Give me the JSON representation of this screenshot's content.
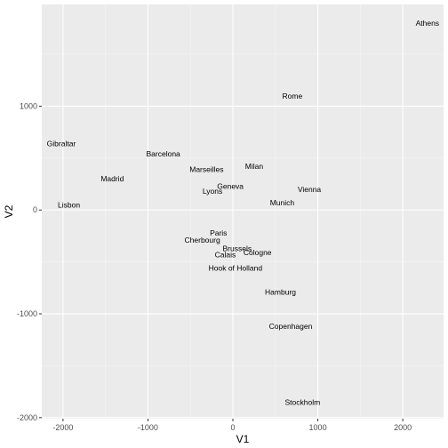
{
  "chart_data": {
    "type": "scatter",
    "xlabel": "V1",
    "ylabel": "V2",
    "xlim": [
      -2250,
      2480
    ],
    "ylim": [
      -2010,
      1980
    ],
    "xticks": [
      -2000,
      -1000,
      0,
      1000,
      2000
    ],
    "yticks": [
      -2000,
      -1000,
      0,
      1000
    ],
    "xtick_labels": [
      "-2000",
      "-1000",
      "0",
      "1000",
      "2000"
    ],
    "ytick_labels": [
      "-2000",
      "-1000",
      "0",
      "1000"
    ],
    "grid": true,
    "points": [
      {
        "label": "Athens",
        "x": 2290,
        "y": 1800
      },
      {
        "label": "Rome",
        "x": 700,
        "y": 1100
      },
      {
        "label": "Gibraltar",
        "x": -2020,
        "y": 640
      },
      {
        "label": "Barcelona",
        "x": -820,
        "y": 540
      },
      {
        "label": "Marseilles",
        "x": -310,
        "y": 390
      },
      {
        "label": "Milan",
        "x": 250,
        "y": 420
      },
      {
        "label": "Madrid",
        "x": -1420,
        "y": 300
      },
      {
        "label": "Geneva",
        "x": -30,
        "y": 230
      },
      {
        "label": "Lyons",
        "x": -240,
        "y": 180
      },
      {
        "label": "Vienna",
        "x": 900,
        "y": 200
      },
      {
        "label": "Lisbon",
        "x": -1930,
        "y": 50
      },
      {
        "label": "Munich",
        "x": 580,
        "y": 70
      },
      {
        "label": "Paris",
        "x": -170,
        "y": -220
      },
      {
        "label": "Cherbourg",
        "x": -360,
        "y": -290
      },
      {
        "label": "Brussels",
        "x": 50,
        "y": -370
      },
      {
        "label": "Cologne",
        "x": 290,
        "y": -410
      },
      {
        "label": "Calais",
        "x": -90,
        "y": -430
      },
      {
        "label": "Hook of Holland",
        "x": 30,
        "y": -560
      },
      {
        "label": "Hamburg",
        "x": 560,
        "y": -790
      },
      {
        "label": "Copenhagen",
        "x": 680,
        "y": -1120
      },
      {
        "label": "Stockholm",
        "x": 820,
        "y": -1850
      }
    ]
  },
  "colors": {
    "panel_background": "#ebebeb",
    "grid_major": "#ffffff",
    "text": "#000000",
    "tick_text": "#4d4d4d",
    "tick_mark": "#333333"
  }
}
